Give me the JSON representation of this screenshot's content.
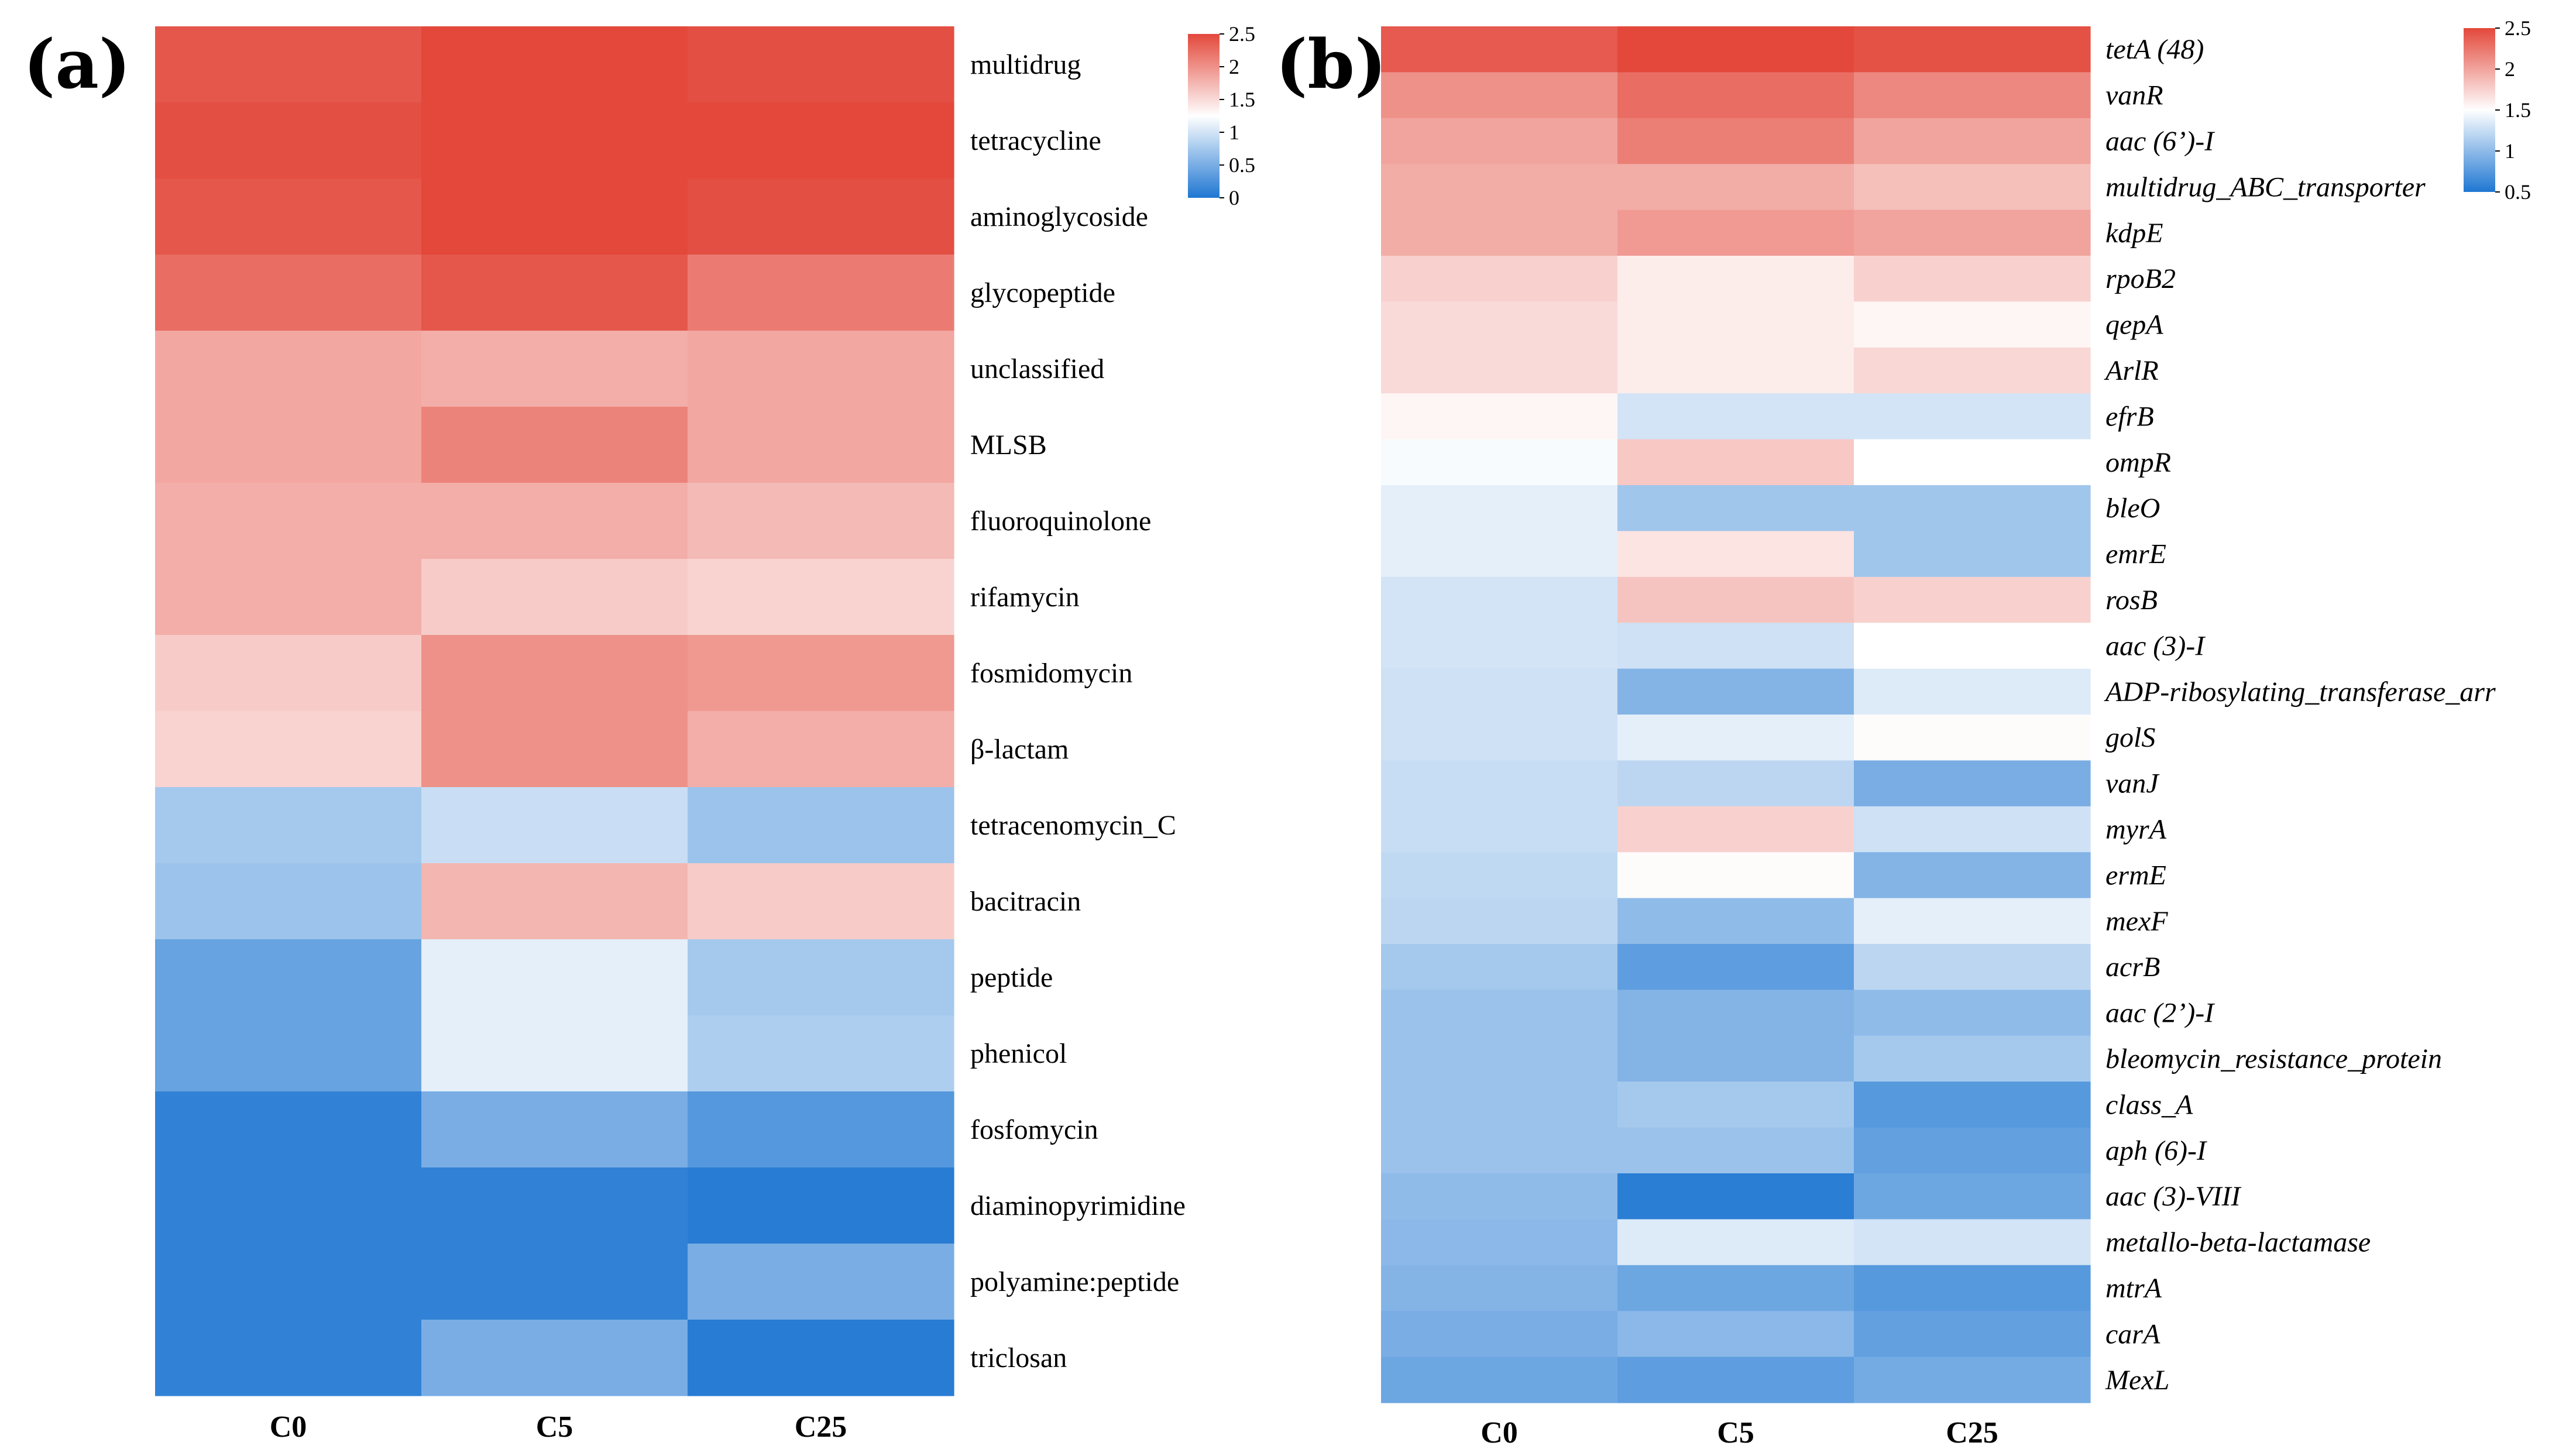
{
  "chart_data": [
    {
      "type": "heatmap",
      "panel_label": "(a)",
      "columns": [
        "C0",
        "C5",
        "C25"
      ],
      "rows": [
        "multidrug",
        "tetracycline",
        "aminoglycoside",
        "glycopeptide",
        "unclassified",
        "MLSB",
        "fluoroquinolone",
        "rifamycin",
        "fosmidomycin",
        "β-lactam",
        "tetracenomycin_C",
        "bacitracin",
        "peptide",
        "phenicol",
        "fosfomycin",
        "diaminopyrimidine",
        "polyamine:peptide",
        "triclosan"
      ],
      "values": [
        [
          2.4,
          2.55,
          2.45
        ],
        [
          2.45,
          2.6,
          2.5
        ],
        [
          2.4,
          2.55,
          2.45
        ],
        [
          2.25,
          2.4,
          2.15
        ],
        [
          1.85,
          1.8,
          1.85
        ],
        [
          1.85,
          2.1,
          1.85
        ],
        [
          1.8,
          1.8,
          1.72
        ],
        [
          1.8,
          1.6,
          1.55
        ],
        [
          1.6,
          2.0,
          1.95
        ],
        [
          1.55,
          2.0,
          1.8
        ],
        [
          0.75,
          0.95,
          0.7
        ],
        [
          0.7,
          1.75,
          1.6
        ],
        [
          0.4,
          1.1,
          0.75
        ],
        [
          0.4,
          1.1,
          0.8
        ],
        [
          0.1,
          0.5,
          0.3
        ],
        [
          0.1,
          0.1,
          0.05
        ],
        [
          0.1,
          0.1,
          0.5
        ],
        [
          0.1,
          0.5,
          0.05
        ]
      ],
      "legend": {
        "min": 0,
        "max": 2.5,
        "ticks": [
          "2.5",
          "2",
          "1.5",
          "1",
          "0.5",
          "0"
        ],
        "tick_values": [
          2.5,
          2,
          1.5,
          1,
          0.5,
          0
        ]
      }
    },
    {
      "type": "heatmap",
      "panel_label": "(b)",
      "columns": [
        "C0",
        "C5",
        "C25"
      ],
      "rows": [
        "tetA (48)",
        "vanR",
        "aac (6’)-I",
        "multidrug_ABC_transporter",
        "kdpE",
        "rpoB2",
        "qepA",
        "ArlR",
        "efrB",
        "ompR",
        "bleO",
        "emrE",
        "rosB",
        "aac (3)-I",
        "ADP-ribosylating_transferase_arr",
        "golS",
        "vanJ",
        "myrA",
        "ermE",
        "mexF",
        "acrB",
        "aac (2’)-I",
        "bleomycin_resistance_protein",
        "class_A",
        "aph (6)-I",
        "aac (3)-VIII",
        "metallo-beta-lactamase",
        "mtrA",
        "carA",
        "MexL"
      ],
      "values": [
        [
          2.4,
          2.55,
          2.45
        ],
        [
          2.1,
          2.3,
          2.15
        ],
        [
          2.0,
          2.2,
          2.0
        ],
        [
          1.95,
          1.95,
          1.85
        ],
        [
          1.95,
          2.05,
          2.0
        ],
        [
          1.75,
          1.6,
          1.75
        ],
        [
          1.7,
          1.6,
          1.55
        ],
        [
          1.7,
          1.6,
          1.72
        ],
        [
          1.55,
          1.3,
          1.3
        ],
        [
          1.47,
          1.8,
          1.5
        ],
        [
          1.38,
          1.08,
          1.08
        ],
        [
          1.38,
          1.65,
          1.08
        ],
        [
          1.3,
          1.82,
          1.75
        ],
        [
          1.3,
          1.28,
          1.5
        ],
        [
          1.28,
          0.95,
          1.35
        ],
        [
          1.28,
          1.38,
          1.52
        ],
        [
          1.25,
          1.2,
          0.9
        ],
        [
          1.25,
          1.75,
          1.28
        ],
        [
          1.22,
          1.52,
          0.95
        ],
        [
          1.2,
          1.0,
          1.38
        ],
        [
          1.1,
          0.78,
          1.2
        ],
        [
          1.05,
          0.95,
          1.0
        ],
        [
          1.05,
          0.95,
          1.1
        ],
        [
          1.05,
          1.1,
          0.75
        ],
        [
          1.05,
          1.05,
          0.8
        ],
        [
          1.0,
          0.55,
          0.85
        ],
        [
          0.98,
          1.35,
          1.3
        ],
        [
          0.95,
          0.85,
          0.75
        ],
        [
          0.9,
          0.98,
          0.8
        ],
        [
          0.85,
          0.78,
          0.88
        ]
      ],
      "legend": {
        "min": 0.5,
        "max": 2.5,
        "ticks": [
          "2.5",
          "2",
          "1.5",
          "1",
          "0.5"
        ],
        "tick_values": [
          2.5,
          2,
          1.5,
          1,
          0.5
        ]
      }
    }
  ],
  "colors": {
    "high": "#e3483b",
    "mid": "#ffffff",
    "low": "#1f77d2",
    "text": "#000000"
  }
}
